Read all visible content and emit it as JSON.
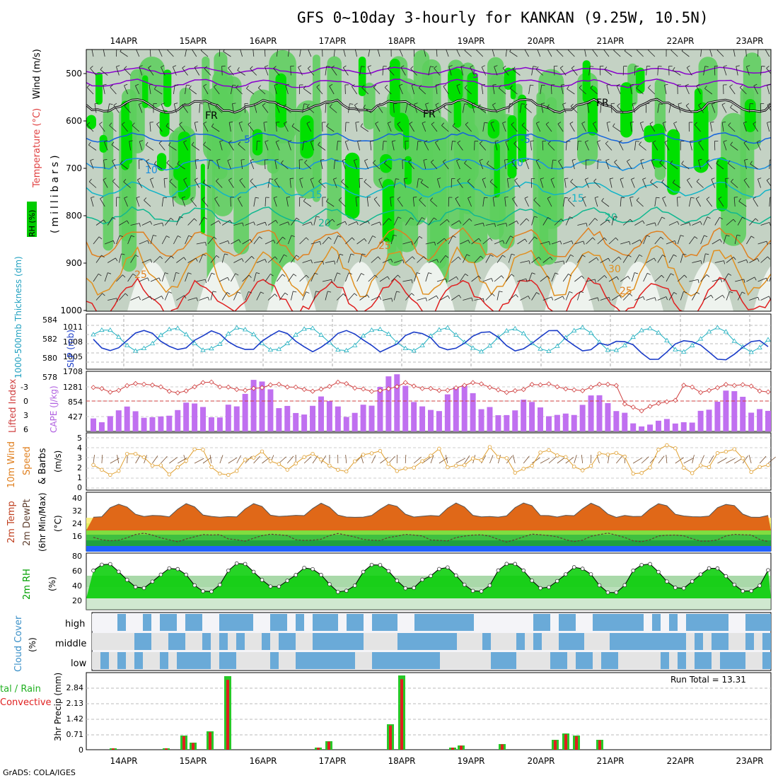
{
  "title": "GFS 0~10day 3-hourly for KANKAN (9.25W, 10.5N)",
  "credit": "GrADS: COLA/IGES",
  "dates": [
    "14APR",
    "15APR",
    "16APR",
    "17APR",
    "18APR",
    "19APR",
    "20APR",
    "21APR",
    "22APR",
    "23APR"
  ],
  "colors": {
    "frame": "#000000",
    "grid": "#999999",
    "rh_green": "#00dd00",
    "temp_purple": "#8800cc",
    "temp_blue": "#1464dc",
    "temp_cyan": "#10b4c8",
    "temp_orange": "#e08020",
    "temp_red": "#e02020",
    "slp": "#1a3cc8",
    "thickness": "#20b0c0",
    "cape": "#c070f0",
    "lifted": "#d04040",
    "wind": "#e0a030",
    "cloud": "#6aaad8",
    "precip_total": "#28c828",
    "precip_conv": "#e02020"
  },
  "panels": {
    "upper": {
      "label_rh": "RH (%)",
      "label_temp": "Temperature (°C)",
      "label_wind": "Wind (m/s)",
      "label_mb": "(millibars)",
      "yticks": [
        "500",
        "600",
        "700",
        "800",
        "900",
        "1000"
      ],
      "contour_labels": [
        "5",
        "FR",
        "FR",
        "FR",
        "-5",
        "-5",
        "10",
        "10",
        "15",
        "15",
        "20",
        "20",
        "25",
        "25",
        "25",
        "30",
        "25"
      ]
    },
    "slp": {
      "label_left": "1000-500mb Thickness (dm)",
      "label_right": "SLP (mb)",
      "yticks_left": [
        "584",
        "582",
        "580",
        "578"
      ],
      "yticks_right": [
        "1011",
        "1008",
        "1005",
        "1708"
      ]
    },
    "cape": {
      "label_left": "Lifted Index",
      "label_right": "CAPE (J/kg)",
      "yticks_left": [
        "-3",
        "0",
        "3",
        "6"
      ],
      "yticks_right": [
        "1281",
        "854",
        "427"
      ]
    },
    "wind10": {
      "label_a": "10m Wind",
      "label_b": "Speed",
      "label_c": "& Barbs",
      "label_unit": "(m/s)",
      "yticks": [
        "5",
        "4",
        "3",
        "2",
        "1",
        "0"
      ]
    },
    "temp2m": {
      "label_a": "2m Temp",
      "label_b": "2m DewPt",
      "label_c": "(6hr Min/Max)",
      "label_unit": "(°C)",
      "yticks": [
        "40",
        "32",
        "24",
        "16"
      ]
    },
    "rh2m": {
      "label_a": "2m RH",
      "label_unit": "(%)",
      "yticks": [
        "80",
        "60",
        "40",
        "20"
      ]
    },
    "cloud": {
      "label_a": "Cloud Cover",
      "label_unit": "(%)",
      "levels": [
        "high",
        "middle",
        "low"
      ]
    },
    "precip": {
      "label_a": "3hr Precip (mm)",
      "label_b": "tal / Rain",
      "label_c": "Convective",
      "yticks": [
        "2.84",
        "2.13",
        "1.42",
        "0.71",
        "0"
      ],
      "run_total": "Run Total = 13.31"
    }
  },
  "chart_data": [
    {
      "type": "line",
      "title": "SLP (mb) / 1000-500mb Thickness (dm)",
      "x": [
        "14APR",
        "15APR",
        "16APR",
        "17APR",
        "18APR",
        "19APR",
        "20APR",
        "21APR",
        "22APR",
        "23APR"
      ],
      "series": [
        {
          "name": "SLP (mb)",
          "values": [
            1010,
            1009,
            1011,
            1009,
            1010,
            1008,
            1005,
            1008,
            1008,
            1006
          ]
        },
        {
          "name": "1000-500mb Thickness (dm)",
          "values": [
            583,
            578,
            582,
            579,
            583,
            582,
            583,
            580,
            584,
            578
          ]
        }
      ]
    },
    {
      "type": "bar",
      "title": "CAPE (J/kg)",
      "x": [
        "14APR",
        "15APR",
        "16APR",
        "17APR",
        "18APR",
        "19APR",
        "20APR",
        "21APR",
        "22APR",
        "23APR"
      ],
      "values": [
        300,
        700,
        1100,
        700,
        1200,
        900,
        600,
        700,
        200,
        700
      ]
    },
    {
      "type": "line",
      "title": "10m Wind Speed (m/s)",
      "x": [
        "14APR",
        "15APR",
        "16APR",
        "17APR",
        "18APR",
        "19APR",
        "20APR",
        "21APR",
        "22APR",
        "23APR"
      ],
      "values": [
        2.5,
        3.0,
        4.0,
        3.5,
        3.0,
        3.5,
        4.5,
        3.0,
        2.5,
        3.5
      ]
    },
    {
      "type": "area",
      "title": "2m Temp (°C)",
      "x": [
        "14APR",
        "15APR",
        "16APR",
        "17APR",
        "18APR",
        "19APR",
        "20APR",
        "21APR",
        "22APR",
        "23APR"
      ],
      "values": [
        37,
        38,
        38,
        38,
        36,
        37,
        38,
        37,
        38,
        39
      ]
    },
    {
      "type": "area",
      "title": "2m RH (%)",
      "x": [
        "14APR",
        "15APR",
        "16APR",
        "17APR",
        "18APR",
        "19APR",
        "20APR",
        "21APR",
        "22APR",
        "23APR"
      ],
      "values": [
        60,
        68,
        76,
        68,
        77,
        60,
        68,
        68,
        50,
        58
      ]
    },
    {
      "type": "bar",
      "title": "3hr Precip (mm)",
      "x": [
        "14APR",
        "15APR",
        "16APR",
        "17APR",
        "18APR",
        "19APR",
        "20APR",
        "21APR",
        "22APR",
        "23APR"
      ],
      "values": [
        0.02,
        3.1,
        0.05,
        0.45,
        3.3,
        0.2,
        0.65,
        0.45,
        0,
        0
      ]
    }
  ]
}
